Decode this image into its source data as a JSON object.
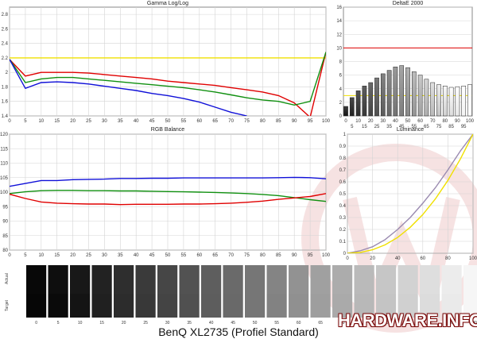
{
  "footer": {
    "title": "BenQ XL2735  (Profiel Standard)"
  },
  "watermark": {
    "brand": "HARDWARE.INFO"
  },
  "colors": {
    "red": "#e00000",
    "green": "#109010",
    "blue": "#1010d8",
    "yellow": "#f0e000",
    "gray": "#9a8ab0",
    "grid": "#d4d4d4"
  },
  "chart_data": [
    {
      "id": "gamma",
      "type": "line",
      "title": "Gamma Log/Log",
      "x": [
        0,
        5,
        10,
        15,
        20,
        25,
        30,
        35,
        40,
        45,
        50,
        55,
        60,
        65,
        70,
        75,
        80,
        85,
        90,
        95,
        100
      ],
      "xticks": [
        "0",
        "5",
        "10",
        "15",
        "20",
        "25",
        "30",
        "35",
        "40",
        "45",
        "50",
        "55",
        "60",
        "65",
        "70",
        "75",
        "80",
        "85",
        "90",
        "95",
        "100"
      ],
      "yticks": [
        "1.4",
        "1.6",
        "1.8",
        "2",
        "2.2",
        "2.4",
        "2.6",
        "2.8"
      ],
      "ylim": [
        1.4,
        2.9
      ],
      "series": [
        {
          "color": "yellow",
          "values": [
            2.2,
            2.2,
            2.2,
            2.2,
            2.2,
            2.2,
            2.2,
            2.2,
            2.2,
            2.2,
            2.2,
            2.2,
            2.2,
            2.2,
            2.2,
            2.2,
            2.2,
            2.2,
            2.2,
            2.2,
            2.2
          ]
        },
        {
          "color": "red",
          "values": [
            2.18,
            1.95,
            2.0,
            2.0,
            2.0,
            1.99,
            1.97,
            1.95,
            1.93,
            1.91,
            1.88,
            1.86,
            1.84,
            1.82,
            1.79,
            1.76,
            1.73,
            1.68,
            1.58,
            1.38,
            2.28
          ]
        },
        {
          "color": "green",
          "values": [
            2.18,
            1.86,
            1.91,
            1.93,
            1.93,
            1.91,
            1.89,
            1.87,
            1.85,
            1.83,
            1.81,
            1.79,
            1.76,
            1.73,
            1.69,
            1.65,
            1.62,
            1.6,
            1.55,
            1.6,
            2.28
          ]
        },
        {
          "color": "blue",
          "values": [
            2.18,
            1.78,
            1.86,
            1.87,
            1.86,
            1.84,
            1.81,
            1.78,
            1.75,
            1.71,
            1.68,
            1.64,
            1.59,
            1.52,
            1.45,
            1.4,
            null,
            null,
            null,
            null,
            2.12
          ]
        }
      ]
    },
    {
      "id": "deltae",
      "type": "bar",
      "title": "DeltaE 2000",
      "x": [
        0,
        5,
        10,
        15,
        20,
        25,
        30,
        35,
        40,
        45,
        50,
        55,
        60,
        65,
        70,
        75,
        80,
        85,
        90,
        95,
        100
      ],
      "xticks": [
        "0",
        "10",
        "20",
        "30",
        "40",
        "50",
        "60",
        "70",
        "80",
        "90",
        "100"
      ],
      "xtick_values": [
        0,
        10,
        20,
        30,
        40,
        50,
        60,
        70,
        80,
        90,
        100
      ],
      "extra_xticks": [
        "5",
        "15",
        "25",
        "35",
        "45",
        "55",
        "65",
        "75",
        "85",
        "95"
      ],
      "extra_xtick_values": [
        5,
        15,
        25,
        35,
        45,
        55,
        65,
        75,
        85,
        95
      ],
      "yticks": [
        "0",
        "2",
        "4",
        "6",
        "8",
        "10",
        "12",
        "14",
        "16"
      ],
      "ylim": [
        0,
        16
      ],
      "reference_lines": [
        {
          "value": 10,
          "color": "red"
        },
        {
          "value": 3,
          "color": "yellow"
        }
      ],
      "values": [
        1.4,
        2.7,
        3.7,
        4.4,
        4.9,
        5.6,
        6.2,
        6.7,
        7.2,
        7.4,
        7.1,
        6.5,
        6.0,
        5.4,
        4.9,
        4.6,
        4.4,
        4.2,
        4.3,
        4.4,
        4.6
      ]
    },
    {
      "id": "rgb",
      "type": "line",
      "title": "RGB Balance",
      "x": [
        0,
        5,
        10,
        15,
        20,
        25,
        30,
        35,
        40,
        45,
        50,
        55,
        60,
        65,
        70,
        75,
        80,
        85,
        90,
        95,
        100
      ],
      "xticks": [
        "0",
        "5",
        "10",
        "15",
        "20",
        "25",
        "30",
        "35",
        "40",
        "45",
        "50",
        "55",
        "60",
        "65",
        "70",
        "75",
        "80",
        "85",
        "90",
        "95",
        "100"
      ],
      "yticks": [
        "80",
        "85",
        "90",
        "95",
        "100",
        "105",
        "110",
        "115",
        "120"
      ],
      "ylim": [
        80,
        120
      ],
      "series": [
        {
          "color": "blue",
          "values": [
            102,
            103,
            104,
            104,
            104.3,
            104.4,
            104.5,
            104.7,
            104.7,
            104.8,
            104.8,
            104.9,
            104.9,
            104.9,
            104.9,
            104.9,
            104.9,
            105,
            105.1,
            105,
            104.6
          ]
        },
        {
          "color": "green",
          "values": [
            99.5,
            100.1,
            100.5,
            100.6,
            100.6,
            100.5,
            100.5,
            100.4,
            100.4,
            100.3,
            100.2,
            100.1,
            100,
            99.9,
            99.7,
            99.5,
            99.2,
            98.8,
            98.1,
            97.4,
            96.8
          ]
        },
        {
          "color": "red",
          "values": [
            99.3,
            97.8,
            96.6,
            96.2,
            96,
            95.9,
            95.9,
            95.7,
            95.8,
            95.8,
            95.8,
            95.9,
            95.9,
            96,
            96.2,
            96.5,
            96.9,
            97.5,
            98.0,
            98.5,
            99.5
          ]
        }
      ]
    },
    {
      "id": "luminance",
      "type": "line",
      "title": "Luminance",
      "x": [
        0,
        10,
        20,
        30,
        40,
        50,
        60,
        70,
        80,
        90,
        100
      ],
      "xticks": [
        "0",
        "20",
        "40",
        "60",
        "80",
        "100"
      ],
      "xtick_values": [
        0,
        20,
        40,
        60,
        80,
        100
      ],
      "yticks": [
        "0",
        "0.1",
        "0.2",
        "0.3",
        "0.4",
        "0.5",
        "0.6",
        "0.7",
        "0.8",
        "0.9",
        "1"
      ],
      "ylim": [
        0,
        1
      ],
      "series": [
        {
          "color": "gray",
          "values": [
            0,
            0.02,
            0.055,
            0.115,
            0.2,
            0.3,
            0.42,
            0.55,
            0.7,
            0.86,
            1
          ]
        },
        {
          "color": "yellow",
          "values": [
            0,
            0.006,
            0.029,
            0.071,
            0.133,
            0.218,
            0.325,
            0.456,
            0.612,
            0.793,
            1
          ]
        }
      ]
    },
    {
      "id": "grayscale",
      "type": "table",
      "row_labels": [
        "Actual",
        "Target"
      ],
      "labels": [
        "0",
        "5",
        "10",
        "15",
        "20",
        "25",
        "30",
        "35",
        "40",
        "45",
        "50",
        "55",
        "60",
        "65",
        "70",
        "75",
        "80",
        "85",
        "90",
        "95",
        "100"
      ],
      "actual_gray": [
        8,
        14,
        24,
        34,
        46,
        58,
        70,
        82,
        94,
        106,
        118,
        132,
        146,
        160,
        172,
        186,
        198,
        210,
        222,
        236,
        246
      ],
      "target_gray": [
        6,
        10,
        20,
        32,
        44,
        56,
        68,
        80,
        93,
        105,
        118,
        130,
        144,
        158,
        170,
        184,
        196,
        208,
        220,
        234,
        246
      ]
    }
  ]
}
